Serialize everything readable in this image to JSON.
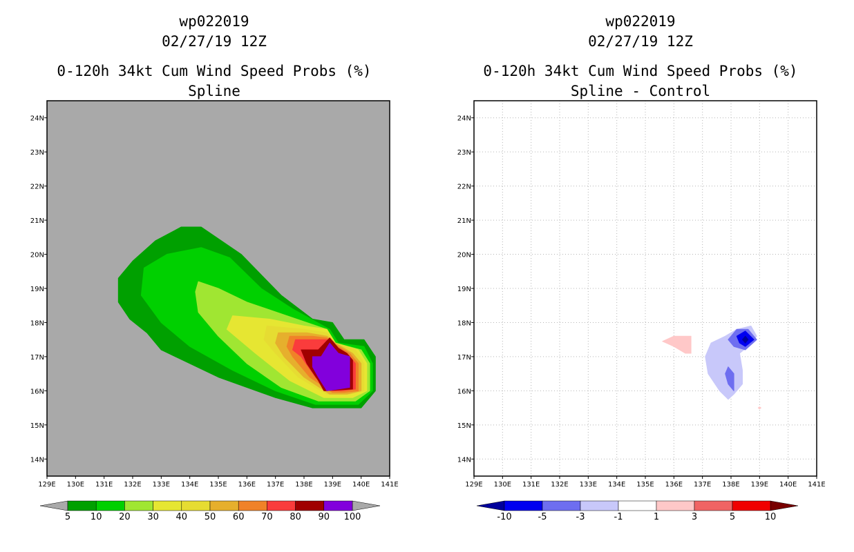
{
  "chart_data": [
    {
      "type": "contour",
      "storm_id": "wp022019",
      "date": "02/27/19 12Z",
      "title": "0-120h 34kt Cum Wind Speed Probs (%)",
      "subtitle": "Spline",
      "xlim": [
        129,
        141
      ],
      "ylim": [
        13.5,
        24.5
      ],
      "x_ticks": [
        "129E",
        "130E",
        "131E",
        "132E",
        "133E",
        "134E",
        "135E",
        "136E",
        "137E",
        "138E",
        "139E",
        "140E",
        "141E"
      ],
      "y_ticks": [
        "14N",
        "15N",
        "16N",
        "17N",
        "18N",
        "19N",
        "20N",
        "21N",
        "22N",
        "23N",
        "24N"
      ],
      "background": "#a9a9a9",
      "contours": [
        {
          "level": 5,
          "color": "#00a000",
          "points": [
            [
              133.7,
              20.8
            ],
            [
              134.4,
              20.8
            ],
            [
              135.8,
              20.0
            ],
            [
              137.2,
              18.8
            ],
            [
              138.3,
              18.1
            ],
            [
              139.0,
              18.0
            ],
            [
              139.4,
              17.5
            ],
            [
              140.1,
              17.5
            ],
            [
              140.5,
              17.0
            ],
            [
              140.5,
              16.0
            ],
            [
              140.0,
              15.5
            ],
            [
              138.3,
              15.5
            ],
            [
              137.0,
              15.8
            ],
            [
              135.0,
              16.4
            ],
            [
              133.0,
              17.2
            ],
            [
              132.5,
              17.7
            ],
            [
              131.9,
              18.1
            ],
            [
              131.5,
              18.6
            ],
            [
              131.5,
              19.3
            ],
            [
              132.0,
              19.8
            ],
            [
              132.8,
              20.4
            ]
          ]
        },
        {
          "level": 10,
          "color": "#00d000",
          "points": [
            [
              133.2,
              20.0
            ],
            [
              134.4,
              20.2
            ],
            [
              135.4,
              19.9
            ],
            [
              136.5,
              19.0
            ],
            [
              137.6,
              18.4
            ],
            [
              138.9,
              17.8
            ],
            [
              139.2,
              17.4
            ],
            [
              140.1,
              17.3
            ],
            [
              140.4,
              16.8
            ],
            [
              140.4,
              16.0
            ],
            [
              139.9,
              15.6
            ],
            [
              138.4,
              15.6
            ],
            [
              137.0,
              16.0
            ],
            [
              135.5,
              16.6
            ],
            [
              134.0,
              17.3
            ],
            [
              133.0,
              18.0
            ],
            [
              132.3,
              18.8
            ],
            [
              132.4,
              19.6
            ]
          ]
        },
        {
          "level": 20,
          "color": "#a0e632",
          "points": [
            [
              134.3,
              19.2
            ],
            [
              135.0,
              19.0
            ],
            [
              136.0,
              18.6
            ],
            [
              137.4,
              18.2
            ],
            [
              138.8,
              17.8
            ],
            [
              139.1,
              17.4
            ],
            [
              140.0,
              17.2
            ],
            [
              140.3,
              16.8
            ],
            [
              140.3,
              16.0
            ],
            [
              139.8,
              15.7
            ],
            [
              138.5,
              15.7
            ],
            [
              137.2,
              16.1
            ],
            [
              136.0,
              16.8
            ],
            [
              135.0,
              17.6
            ],
            [
              134.3,
              18.3
            ],
            [
              134.2,
              18.9
            ]
          ]
        },
        {
          "level": 30,
          "color": "#e6e632",
          "points": [
            [
              135.5,
              18.2
            ],
            [
              136.8,
              18.1
            ],
            [
              138.0,
              17.9
            ],
            [
              138.8,
              17.8
            ],
            [
              139.1,
              17.4
            ],
            [
              139.9,
              17.2
            ],
            [
              140.2,
              16.8
            ],
            [
              140.2,
              16.0
            ],
            [
              139.7,
              15.8
            ],
            [
              138.7,
              15.8
            ],
            [
              137.5,
              16.3
            ],
            [
              136.3,
              17.1
            ],
            [
              135.3,
              17.8
            ]
          ]
        },
        {
          "level": 40,
          "color": "#e6dc32",
          "points": [
            [
              136.7,
              17.9
            ],
            [
              138.0,
              17.8
            ],
            [
              138.8,
              17.7
            ],
            [
              139.1,
              17.4
            ],
            [
              139.8,
              17.2
            ],
            [
              140.1,
              16.8
            ],
            [
              140.1,
              16.0
            ],
            [
              139.6,
              15.9
            ],
            [
              138.8,
              15.9
            ],
            [
              137.8,
              16.4
            ],
            [
              137.0,
              17.1
            ],
            [
              136.6,
              17.5
            ]
          ]
        },
        {
          "level": 50,
          "color": "#e6af2d",
          "points": [
            [
              137.1,
              17.7
            ],
            [
              138.1,
              17.7
            ],
            [
              138.8,
              17.6
            ],
            [
              139.1,
              17.4
            ],
            [
              139.7,
              17.1
            ],
            [
              140.0,
              16.8
            ],
            [
              140.0,
              16.0
            ],
            [
              139.5,
              15.9
            ],
            [
              138.9,
              15.9
            ],
            [
              138.0,
              16.4
            ],
            [
              137.3,
              17.0
            ],
            [
              137.0,
              17.4
            ]
          ]
        },
        {
          "level": 60,
          "color": "#f08228",
          "points": [
            [
              137.5,
              17.6
            ],
            [
              138.3,
              17.6
            ],
            [
              138.8,
              17.55
            ],
            [
              139.1,
              17.35
            ],
            [
              139.6,
              17.1
            ],
            [
              139.9,
              16.8
            ],
            [
              139.9,
              16.0
            ],
            [
              139.4,
              15.95
            ],
            [
              139.0,
              15.95
            ],
            [
              138.2,
              16.4
            ],
            [
              137.6,
              17.0
            ],
            [
              137.4,
              17.3
            ]
          ]
        },
        {
          "level": 70,
          "color": "#fa3c3c",
          "points": [
            [
              137.7,
              17.5
            ],
            [
              138.5,
              17.5
            ],
            [
              138.8,
              17.5
            ],
            [
              139.1,
              17.3
            ],
            [
              139.5,
              17.1
            ],
            [
              139.8,
              16.8
            ],
            [
              139.8,
              16.05
            ],
            [
              139.3,
              16.0
            ],
            [
              139.0,
              16.0
            ],
            [
              138.4,
              16.4
            ],
            [
              137.9,
              17.0
            ],
            [
              137.6,
              17.2
            ]
          ]
        },
        {
          "level": 80,
          "color": "#a00000",
          "points": [
            [
              137.9,
              17.2
            ],
            [
              138.5,
              17.2
            ],
            [
              138.9,
              17.55
            ],
            [
              139.2,
              17.25
            ],
            [
              139.5,
              17.1
            ],
            [
              139.7,
              16.9
            ],
            [
              139.7,
              16.05
            ],
            [
              138.7,
              16.0
            ],
            [
              138.5,
              16.3
            ],
            [
              138.1,
              16.8
            ]
          ]
        },
        {
          "level": 90,
          "color": "#8200dc",
          "points": [
            [
              138.3,
              17.0
            ],
            [
              138.6,
              17.0
            ],
            [
              138.9,
              17.4
            ],
            [
              139.2,
              17.1
            ],
            [
              139.6,
              17.0
            ],
            [
              139.6,
              16.1
            ],
            [
              138.8,
              16.0
            ],
            [
              138.5,
              16.4
            ],
            [
              138.3,
              16.7
            ]
          ]
        }
      ],
      "colorbar": {
        "colors": [
          "#00a000",
          "#00d000",
          "#a0e632",
          "#e6e632",
          "#e6dc32",
          "#e6af2d",
          "#f08228",
          "#fa3c3c",
          "#a00000",
          "#8200dc"
        ],
        "labels": [
          "5",
          "10",
          "20",
          "30",
          "40",
          "50",
          "60",
          "70",
          "80",
          "90",
          "100"
        ],
        "end_color": "#a9a9a9"
      }
    },
    {
      "type": "contour",
      "storm_id": "wp022019",
      "date": "02/27/19 12Z",
      "title": "0-120h 34kt Cum Wind Speed Probs (%)",
      "subtitle": "Spline - Control",
      "xlim": [
        129,
        141
      ],
      "ylim": [
        13.5,
        24.5
      ],
      "x_ticks": [
        "129E",
        "130E",
        "131E",
        "132E",
        "133E",
        "134E",
        "135E",
        "136E",
        "137E",
        "138E",
        "139E",
        "140E",
        "141E"
      ],
      "y_ticks": [
        "14N",
        "15N",
        "16N",
        "17N",
        "18N",
        "19N",
        "20N",
        "21N",
        "22N",
        "23N",
        "24N"
      ],
      "background": "#ffffff",
      "grid": true,
      "contours": [
        {
          "level": -1,
          "color": "#c8c8fa",
          "points": [
            [
              137.3,
              17.4
            ],
            [
              137.8,
              17.6
            ],
            [
              138.2,
              17.8
            ],
            [
              138.7,
              17.9
            ],
            [
              138.9,
              17.6
            ],
            [
              138.6,
              17.3
            ],
            [
              138.3,
              17.1
            ],
            [
              138.4,
              16.6
            ],
            [
              138.4,
              16.2
            ],
            [
              138.1,
              15.9
            ],
            [
              137.9,
              15.75
            ],
            [
              137.6,
              16.0
            ],
            [
              137.2,
              16.5
            ],
            [
              137.1,
              17.0
            ]
          ]
        },
        {
          "level": -3,
          "color": "#6e6ef0",
          "points": [
            [
              137.9,
              17.5
            ],
            [
              138.2,
              17.8
            ],
            [
              138.6,
              17.8
            ],
            [
              138.9,
              17.5
            ],
            [
              138.5,
              17.2
            ],
            [
              138.1,
              17.3
            ]
          ]
        },
        {
          "level": -3,
          "color": "#6e6ef0",
          "points": [
            [
              137.8,
              16.5
            ],
            [
              137.9,
              16.7
            ],
            [
              138.1,
              16.5
            ],
            [
              138.1,
              16.0
            ],
            [
              137.9,
              16.2
            ]
          ]
        },
        {
          "level": -5,
          "color": "#0000f0",
          "points": [
            [
              138.2,
              17.6
            ],
            [
              138.5,
              17.75
            ],
            [
              138.8,
              17.5
            ],
            [
              138.5,
              17.3
            ],
            [
              138.3,
              17.4
            ]
          ]
        },
        {
          "level": -10,
          "color": "#00009b",
          "points": [
            [
              138.4,
              17.5
            ],
            [
              138.5,
              17.6
            ],
            [
              138.6,
              17.5
            ],
            [
              138.5,
              17.4
            ]
          ]
        },
        {
          "level": 1,
          "color": "#ffc8c8",
          "points": [
            [
              135.6,
              17.45
            ],
            [
              136.0,
              17.6
            ],
            [
              136.6,
              17.6
            ],
            [
              136.6,
              17.1
            ],
            [
              136.4,
              17.1
            ],
            [
              136.0,
              17.3
            ]
          ]
        },
        {
          "level": 1,
          "color": "#ffc8c8",
          "points": [
            [
              138.95,
              15.5
            ],
            [
              139.0,
              15.53
            ],
            [
              139.05,
              15.5
            ],
            [
              139.0,
              15.47
            ]
          ]
        }
      ],
      "colorbar": {
        "colors": [
          "#0000f0",
          "#6e6ef0",
          "#c8c8fa",
          "#ffffff",
          "#ffc8c8",
          "#f06464",
          "#f00000"
        ],
        "labels": [
          "-10",
          "-5",
          "-3",
          "-1",
          "1",
          "3",
          "5",
          "10"
        ],
        "start_color": "#00009b",
        "end_color": "#780000"
      }
    }
  ]
}
